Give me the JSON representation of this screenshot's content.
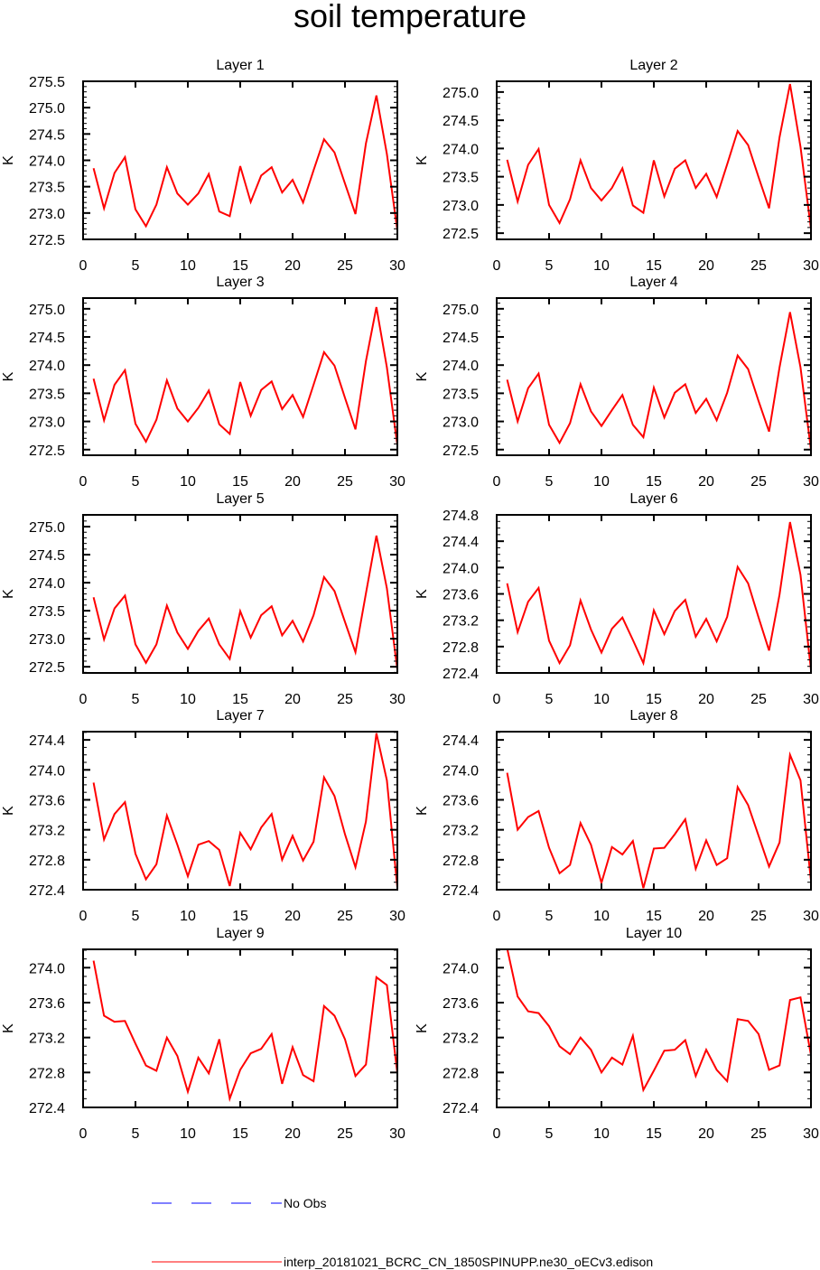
{
  "title": "soil temperature",
  "chart_data": [
    {
      "type": "line",
      "title": "Layer 1",
      "xlabel": "",
      "ylabel": "K",
      "xlim": [
        0,
        30
      ],
      "ylim": [
        272.5,
        275.5
      ],
      "xticks": [
        0,
        5,
        10,
        15,
        20,
        25,
        30
      ],
      "yticks": [
        272.5,
        273.0,
        273.5,
        274.0,
        274.5,
        275.0,
        275.5
      ],
      "ytick_labels": [
        "272.5",
        "273.0",
        "273.5",
        "274.0",
        "274.5",
        "275.0",
        "275.5"
      ],
      "yminor": 0.1,
      "series": [
        {
          "name": "interp_20181021_BCRC_CN_1850SPINUPP.ne30_oECv3.edison",
          "values": [
            273.85,
            273.09,
            273.76,
            274.06,
            273.07,
            272.75,
            273.16,
            273.87,
            273.37,
            273.16,
            273.37,
            273.74,
            273.03,
            272.94,
            273.89,
            273.21,
            273.71,
            273.87,
            273.39,
            273.63,
            273.2,
            273.81,
            274.4,
            274.15,
            273.56,
            272.98,
            274.32,
            275.23,
            274.12,
            272.67
          ]
        }
      ]
    },
    {
      "type": "line",
      "title": "Layer 2",
      "xlabel": "",
      "ylabel": "K",
      "xlim": [
        0,
        30
      ],
      "ylim": [
        272.39,
        275.19
      ],
      "xticks": [
        0,
        5,
        10,
        15,
        20,
        25,
        30
      ],
      "yticks": [
        272.5,
        273.0,
        273.5,
        274.0,
        274.5,
        275.0
      ],
      "ytick_labels": [
        "272.5",
        "273.0",
        "273.5",
        "274.0",
        "274.5",
        "275.0"
      ],
      "yminor": 0.1,
      "series": [
        {
          "name": "interp_20181021_BCRC_CN_1850SPINUPP.ne30_oECv3.edison",
          "values": [
            273.8,
            273.06,
            273.71,
            273.99,
            273.0,
            272.68,
            273.1,
            273.79,
            273.3,
            273.08,
            273.3,
            273.65,
            272.99,
            272.86,
            273.79,
            273.15,
            273.64,
            273.79,
            273.3,
            273.55,
            273.14,
            273.72,
            274.31,
            274.06,
            273.49,
            272.94,
            274.2,
            275.14,
            274.03,
            272.58
          ]
        }
      ]
    },
    {
      "type": "line",
      "title": "Layer 3",
      "xlabel": "",
      "ylabel": "K",
      "xlim": [
        0,
        30
      ],
      "ylim": [
        272.4,
        275.19
      ],
      "xticks": [
        0,
        5,
        10,
        15,
        20,
        25,
        30
      ],
      "yticks": [
        272.5,
        273.0,
        273.5,
        274.0,
        274.5,
        275.0
      ],
      "ytick_labels": [
        "272.5",
        "273.0",
        "273.5",
        "274.0",
        "274.5",
        "275.0"
      ],
      "yminor": 0.1,
      "series": [
        {
          "name": "interp_20181021_BCRC_CN_1850SPINUPP.ne30_oECv3.edison",
          "values": [
            273.76,
            273.02,
            273.65,
            273.91,
            272.96,
            272.64,
            273.03,
            273.73,
            273.23,
            273.0,
            273.24,
            273.55,
            272.95,
            272.78,
            273.7,
            273.1,
            273.56,
            273.71,
            273.22,
            273.47,
            273.08,
            273.65,
            274.23,
            273.99,
            273.42,
            272.86,
            274.07,
            275.03,
            273.96,
            272.58
          ]
        }
      ]
    },
    {
      "type": "line",
      "title": "Layer 4",
      "xlabel": "",
      "ylabel": "K",
      "xlim": [
        0,
        30
      ],
      "ylim": [
        272.4,
        275.19
      ],
      "xticks": [
        0,
        5,
        10,
        15,
        20,
        25,
        30
      ],
      "yticks": [
        272.5,
        273.0,
        273.5,
        274.0,
        274.5,
        275.0
      ],
      "ytick_labels": [
        "272.5",
        "273.0",
        "273.5",
        "274.0",
        "274.5",
        "275.0"
      ],
      "yminor": 0.1,
      "series": [
        {
          "name": "interp_20181021_BCRC_CN_1850SPINUPP.ne30_oECv3.edison",
          "values": [
            273.74,
            273.0,
            273.59,
            273.85,
            272.94,
            272.62,
            272.97,
            273.66,
            273.18,
            272.92,
            273.2,
            273.47,
            272.94,
            272.72,
            273.6,
            273.07,
            273.51,
            273.66,
            273.15,
            273.4,
            273.02,
            273.51,
            274.17,
            273.93,
            273.36,
            272.82,
            273.96,
            274.94,
            273.96,
            272.5
          ]
        }
      ]
    },
    {
      "type": "line",
      "title": "Layer 5",
      "xlabel": "",
      "ylabel": "K",
      "xlim": [
        0,
        30
      ],
      "ylim": [
        272.39,
        275.21
      ],
      "xticks": [
        0,
        5,
        10,
        15,
        20,
        25,
        30
      ],
      "yticks": [
        272.5,
        273.0,
        273.5,
        274.0,
        274.5,
        275.0
      ],
      "ytick_labels": [
        "272.5",
        "273.0",
        "273.5",
        "274.0",
        "274.5",
        "275.0"
      ],
      "yminor": 0.1,
      "series": [
        {
          "name": "interp_20181021_BCRC_CN_1850SPINUPP.ne30_oECv3.edison",
          "values": [
            273.74,
            272.99,
            273.54,
            273.77,
            272.9,
            272.57,
            272.9,
            273.59,
            273.11,
            272.82,
            273.14,
            273.36,
            272.9,
            272.64,
            273.49,
            273.02,
            273.42,
            273.58,
            273.06,
            273.32,
            272.95,
            273.42,
            274.1,
            273.85,
            273.3,
            272.76,
            273.81,
            274.84,
            273.9,
            272.45
          ]
        }
      ]
    },
    {
      "type": "line",
      "title": "Layer 6",
      "xlabel": "",
      "ylabel": "K",
      "xlim": [
        0,
        30
      ],
      "ylim": [
        272.4,
        274.8
      ],
      "xticks": [
        0,
        5,
        10,
        15,
        20,
        25,
        30
      ],
      "yticks": [
        272.4,
        272.8,
        273.2,
        273.6,
        274.0,
        274.4,
        274.8
      ],
      "ytick_labels": [
        "272.4",
        "272.8",
        "273.2",
        "273.6",
        "274.0",
        "274.4",
        "274.8"
      ],
      "yminor": 0.1,
      "series": [
        {
          "name": "interp_20181021_BCRC_CN_1850SPINUPP.ne30_oECv3.edison",
          "values": [
            273.76,
            273.02,
            273.48,
            273.69,
            272.89,
            272.55,
            272.82,
            273.5,
            273.06,
            272.71,
            273.07,
            273.24,
            272.9,
            272.55,
            273.35,
            272.99,
            273.34,
            273.51,
            272.95,
            273.22,
            272.88,
            273.25,
            274.01,
            273.76,
            273.24,
            272.74,
            273.59,
            274.69,
            273.89,
            272.45
          ]
        }
      ]
    },
    {
      "type": "line",
      "title": "Layer 7",
      "xlabel": "",
      "ylabel": "K",
      "xlim": [
        0,
        30
      ],
      "ylim": [
        272.4,
        274.51
      ],
      "xticks": [
        0,
        5,
        10,
        15,
        20,
        25,
        30
      ],
      "yticks": [
        272.4,
        272.8,
        273.2,
        273.6,
        274.0,
        274.4
      ],
      "ytick_labels": [
        "272.4",
        "272.8",
        "273.2",
        "273.6",
        "274.0",
        "274.4"
      ],
      "yminor": 0.1,
      "series": [
        {
          "name": "interp_20181021_BCRC_CN_1850SPINUPP.ne30_oECv3.edison",
          "values": [
            273.83,
            273.07,
            273.41,
            273.57,
            272.88,
            272.54,
            272.74,
            273.39,
            273.0,
            272.58,
            273.0,
            273.05,
            272.93,
            272.45,
            273.16,
            272.94,
            273.23,
            273.41,
            272.8,
            273.12,
            272.79,
            273.04,
            273.9,
            273.65,
            273.14,
            272.7,
            273.31,
            274.49,
            273.86,
            272.43
          ]
        }
      ]
    },
    {
      "type": "line",
      "title": "Layer 8",
      "xlabel": "",
      "ylabel": "K",
      "xlim": [
        0,
        30
      ],
      "ylim": [
        272.4,
        274.51
      ],
      "xticks": [
        0,
        5,
        10,
        15,
        20,
        25,
        30
      ],
      "yticks": [
        272.4,
        272.8,
        273.2,
        273.6,
        274.0,
        274.4
      ],
      "ytick_labels": [
        "272.4",
        "272.8",
        "273.2",
        "273.6",
        "274.0",
        "274.4"
      ],
      "yminor": 0.1,
      "series": [
        {
          "name": "interp_20181021_BCRC_CN_1850SPINUPP.ne30_oECv3.edison",
          "values": [
            273.96,
            273.2,
            273.37,
            273.45,
            272.96,
            272.62,
            272.73,
            273.29,
            273.0,
            272.49,
            272.97,
            272.87,
            273.05,
            272.42,
            272.95,
            272.96,
            273.14,
            273.34,
            272.68,
            273.06,
            272.73,
            272.82,
            273.77,
            273.53,
            273.12,
            272.71,
            273.03,
            274.2,
            273.86,
            272.52
          ]
        }
      ]
    },
    {
      "type": "line",
      "title": "Layer 9",
      "xlabel": "",
      "ylabel": "K",
      "xlim": [
        0,
        30
      ],
      "ylim": [
        272.4,
        274.21
      ],
      "xticks": [
        0,
        5,
        10,
        15,
        20,
        25,
        30
      ],
      "yticks": [
        272.4,
        272.8,
        273.2,
        273.6,
        274.0
      ],
      "ytick_labels": [
        "272.4",
        "272.8",
        "273.2",
        "273.6",
        "274.0"
      ],
      "yminor": 0.1,
      "series": [
        {
          "name": "interp_20181021_BCRC_CN_1850SPINUPP.ne30_oECv3.edison",
          "values": [
            274.08,
            273.45,
            273.38,
            273.39,
            273.13,
            272.88,
            272.82,
            273.2,
            272.99,
            272.58,
            272.97,
            272.79,
            273.18,
            272.5,
            272.83,
            273.02,
            273.07,
            273.24,
            272.67,
            273.09,
            272.77,
            272.7,
            273.56,
            273.45,
            273.18,
            272.76,
            272.89,
            273.89,
            273.8,
            272.79
          ]
        }
      ]
    },
    {
      "type": "line",
      "title": "Layer 10",
      "xlabel": "",
      "ylabel": "K",
      "xlim": [
        0,
        30
      ],
      "ylim": [
        272.4,
        274.21
      ],
      "xticks": [
        0,
        5,
        10,
        15,
        20,
        25,
        30
      ],
      "yticks": [
        272.4,
        272.8,
        273.2,
        273.6,
        274.0
      ],
      "ytick_labels": [
        "272.4",
        "272.8",
        "273.2",
        "273.6",
        "274.0"
      ],
      "yminor": 0.1,
      "series": [
        {
          "name": "interp_20181021_BCRC_CN_1850SPINUPP.ne30_oECv3.edison",
          "values": [
            274.22,
            273.67,
            273.5,
            273.48,
            273.33,
            273.1,
            273.01,
            273.2,
            273.06,
            272.8,
            272.97,
            272.89,
            273.22,
            272.6,
            272.82,
            273.05,
            273.06,
            273.17,
            272.76,
            273.06,
            272.83,
            272.7,
            273.41,
            273.39,
            273.24,
            272.83,
            272.88,
            273.63,
            273.66,
            273.0
          ]
        }
      ]
    }
  ],
  "legend": {
    "placement": "bottom",
    "entries": [
      {
        "label": "No Obs",
        "color": "#0000ff",
        "style": "dashed"
      },
      {
        "label": "interp_20181021_BCRC_CN_1850SPINUPP.ne30_oECv3.edison",
        "color": "#ff0000",
        "style": "solid"
      }
    ]
  },
  "colors": {
    "series": "#ff0000",
    "obs": "#0000ff",
    "axis": "#000000"
  }
}
